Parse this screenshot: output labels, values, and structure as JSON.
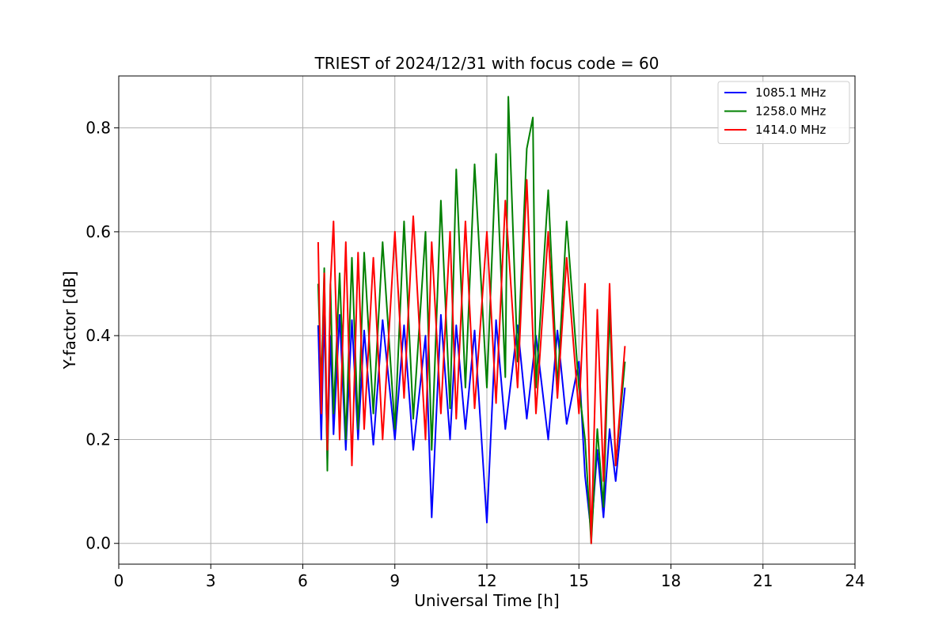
{
  "chart_data": {
    "type": "line",
    "title": "TRIEST of 2024/12/31 with focus code = 60",
    "xlabel": "Universal Time [h]",
    "ylabel": "Y-factor [dB]",
    "xlim": [
      0,
      24
    ],
    "ylim": [
      -0.04,
      0.9
    ],
    "xticks": [
      0,
      3,
      6,
      9,
      12,
      15,
      18,
      21,
      24
    ],
    "yticks": [
      0.0,
      0.2,
      0.4,
      0.6,
      0.8
    ],
    "grid": true,
    "legend_position": "top-right",
    "series": [
      {
        "name": "1085.1 MHz",
        "color": "#0000ff",
        "x": [
          6.5,
          6.6,
          6.7,
          6.8,
          6.9,
          7.0,
          7.2,
          7.4,
          7.6,
          7.8,
          8.0,
          8.3,
          8.6,
          9.0,
          9.3,
          9.6,
          10.0,
          10.2,
          10.5,
          10.8,
          11.0,
          11.3,
          11.6,
          12.0,
          12.3,
          12.6,
          13.0,
          13.3,
          13.6,
          14.0,
          14.3,
          14.6,
          15.0,
          15.2,
          15.4,
          15.6,
          15.8,
          16.0,
          16.2,
          16.5
        ],
        "y": [
          0.42,
          0.2,
          0.45,
          0.16,
          0.4,
          0.21,
          0.44,
          0.18,
          0.43,
          0.2,
          0.41,
          0.19,
          0.43,
          0.2,
          0.42,
          0.18,
          0.4,
          0.05,
          0.44,
          0.2,
          0.42,
          0.22,
          0.41,
          0.04,
          0.43,
          0.22,
          0.42,
          0.24,
          0.4,
          0.2,
          0.41,
          0.23,
          0.35,
          0.13,
          0.02,
          0.18,
          0.05,
          0.22,
          0.12,
          0.3
        ]
      },
      {
        "name": "1258.0 MHz",
        "color": "#008000",
        "x": [
          6.5,
          6.6,
          6.7,
          6.8,
          6.9,
          7.0,
          7.2,
          7.4,
          7.6,
          7.8,
          8.0,
          8.3,
          8.6,
          9.0,
          9.3,
          9.6,
          10.0,
          10.2,
          10.5,
          10.8,
          11.0,
          11.3,
          11.6,
          12.0,
          12.3,
          12.6,
          12.7,
          13.0,
          13.3,
          13.5,
          13.6,
          14.0,
          14.3,
          14.6,
          15.0,
          15.2,
          15.4,
          15.6,
          15.8,
          16.0,
          16.2,
          16.5
        ],
        "y": [
          0.5,
          0.3,
          0.53,
          0.14,
          0.5,
          0.25,
          0.52,
          0.2,
          0.55,
          0.22,
          0.56,
          0.25,
          0.58,
          0.22,
          0.62,
          0.24,
          0.6,
          0.18,
          0.66,
          0.26,
          0.72,
          0.3,
          0.73,
          0.3,
          0.75,
          0.32,
          0.86,
          0.35,
          0.76,
          0.82,
          0.3,
          0.68,
          0.3,
          0.62,
          0.3,
          0.2,
          0.0,
          0.22,
          0.07,
          0.45,
          0.15,
          0.35
        ]
      },
      {
        "name": "1414.0 MHz",
        "color": "#ff0000",
        "x": [
          6.5,
          6.6,
          6.7,
          6.8,
          6.9,
          7.0,
          7.2,
          7.4,
          7.6,
          7.8,
          8.0,
          8.3,
          8.6,
          9.0,
          9.3,
          9.6,
          10.0,
          10.2,
          10.5,
          10.8,
          11.0,
          11.3,
          11.6,
          12.0,
          12.3,
          12.6,
          13.0,
          13.3,
          13.6,
          14.0,
          14.3,
          14.6,
          15.0,
          15.2,
          15.4,
          15.6,
          15.8,
          16.0,
          16.2,
          16.5
        ],
        "y": [
          0.58,
          0.25,
          0.52,
          0.18,
          0.5,
          0.62,
          0.2,
          0.58,
          0.15,
          0.56,
          0.22,
          0.55,
          0.2,
          0.6,
          0.28,
          0.63,
          0.2,
          0.58,
          0.25,
          0.6,
          0.24,
          0.62,
          0.26,
          0.6,
          0.27,
          0.66,
          0.3,
          0.7,
          0.25,
          0.6,
          0.28,
          0.55,
          0.25,
          0.5,
          0.0,
          0.45,
          0.12,
          0.5,
          0.15,
          0.38
        ]
      }
    ]
  }
}
